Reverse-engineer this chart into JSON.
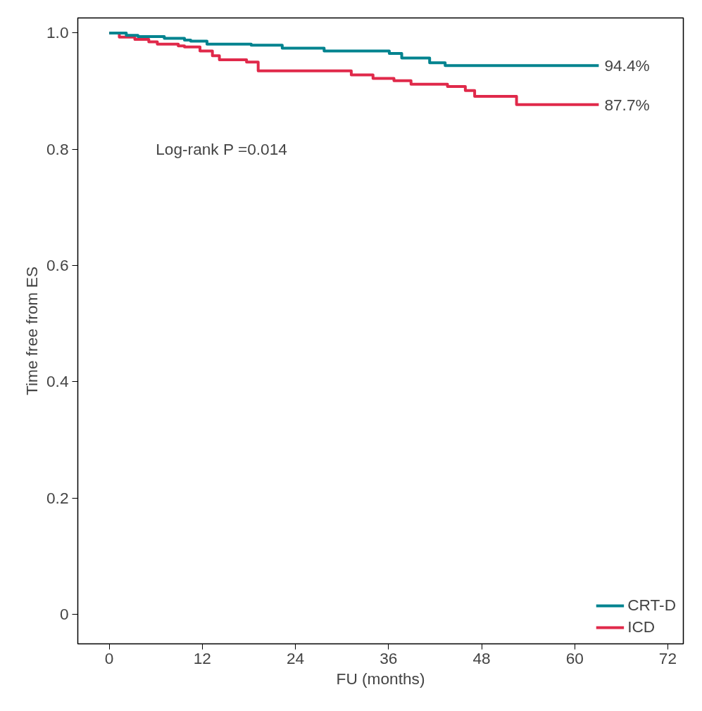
{
  "chart_data": {
    "type": "step",
    "xlabel": "FU (months)",
    "ylabel": "Time free from ES",
    "xlim": [
      -4.05,
      74.0
    ],
    "ylim": [
      -0.051,
      1.026
    ],
    "xticks": [
      0,
      12,
      24,
      36,
      48,
      60,
      72
    ],
    "yticks": [
      {
        "value": 0,
        "label": "0"
      },
      {
        "value": 0.2,
        "label": "0.2"
      },
      {
        "value": 0.4,
        "label": "0.4"
      },
      {
        "value": 0.6,
        "label": "0.6"
      },
      {
        "value": 0.8,
        "label": "0.8"
      },
      {
        "value": 1.0,
        "label": "1.0"
      }
    ],
    "series": [
      {
        "name": "CRT-D",
        "color": "#00838f",
        "x": [
          0,
          2.2,
          3.7,
          7.1,
          9.7,
          10.5,
          12.6,
          18.3,
          22.3,
          27.7,
          36.1,
          37.7,
          41.3,
          43.3,
          63.1
        ],
        "values": [
          1.0,
          0.996,
          0.994,
          0.991,
          0.988,
          0.986,
          0.981,
          0.979,
          0.974,
          0.969,
          0.965,
          0.957,
          0.949,
          0.944,
          0.944
        ]
      },
      {
        "name": "ICD",
        "color": "#e0294a",
        "x": [
          0,
          1.3,
          3.3,
          5.1,
          6.2,
          8.9,
          9.7,
          11.7,
          13.3,
          14.2,
          17.7,
          19.2,
          31.2,
          34.0,
          36.7,
          38.9,
          43.6,
          45.9,
          47.1,
          52.5,
          63.1
        ],
        "values": [
          1.0,
          0.993,
          0.989,
          0.985,
          0.981,
          0.978,
          0.976,
          0.969,
          0.961,
          0.954,
          0.95,
          0.935,
          0.928,
          0.922,
          0.918,
          0.912,
          0.908,
          0.901,
          0.891,
          0.877,
          0.877
        ]
      }
    ],
    "annotations": [
      {
        "text": "94.4%",
        "x": 63.1,
        "y": 0.944
      },
      {
        "text": "87.7%",
        "x": 63.1,
        "y": 0.877
      },
      "Log-rank P =0.014"
    ],
    "legend": "bottom right",
    "grid": false,
    "line_style": "solid"
  }
}
